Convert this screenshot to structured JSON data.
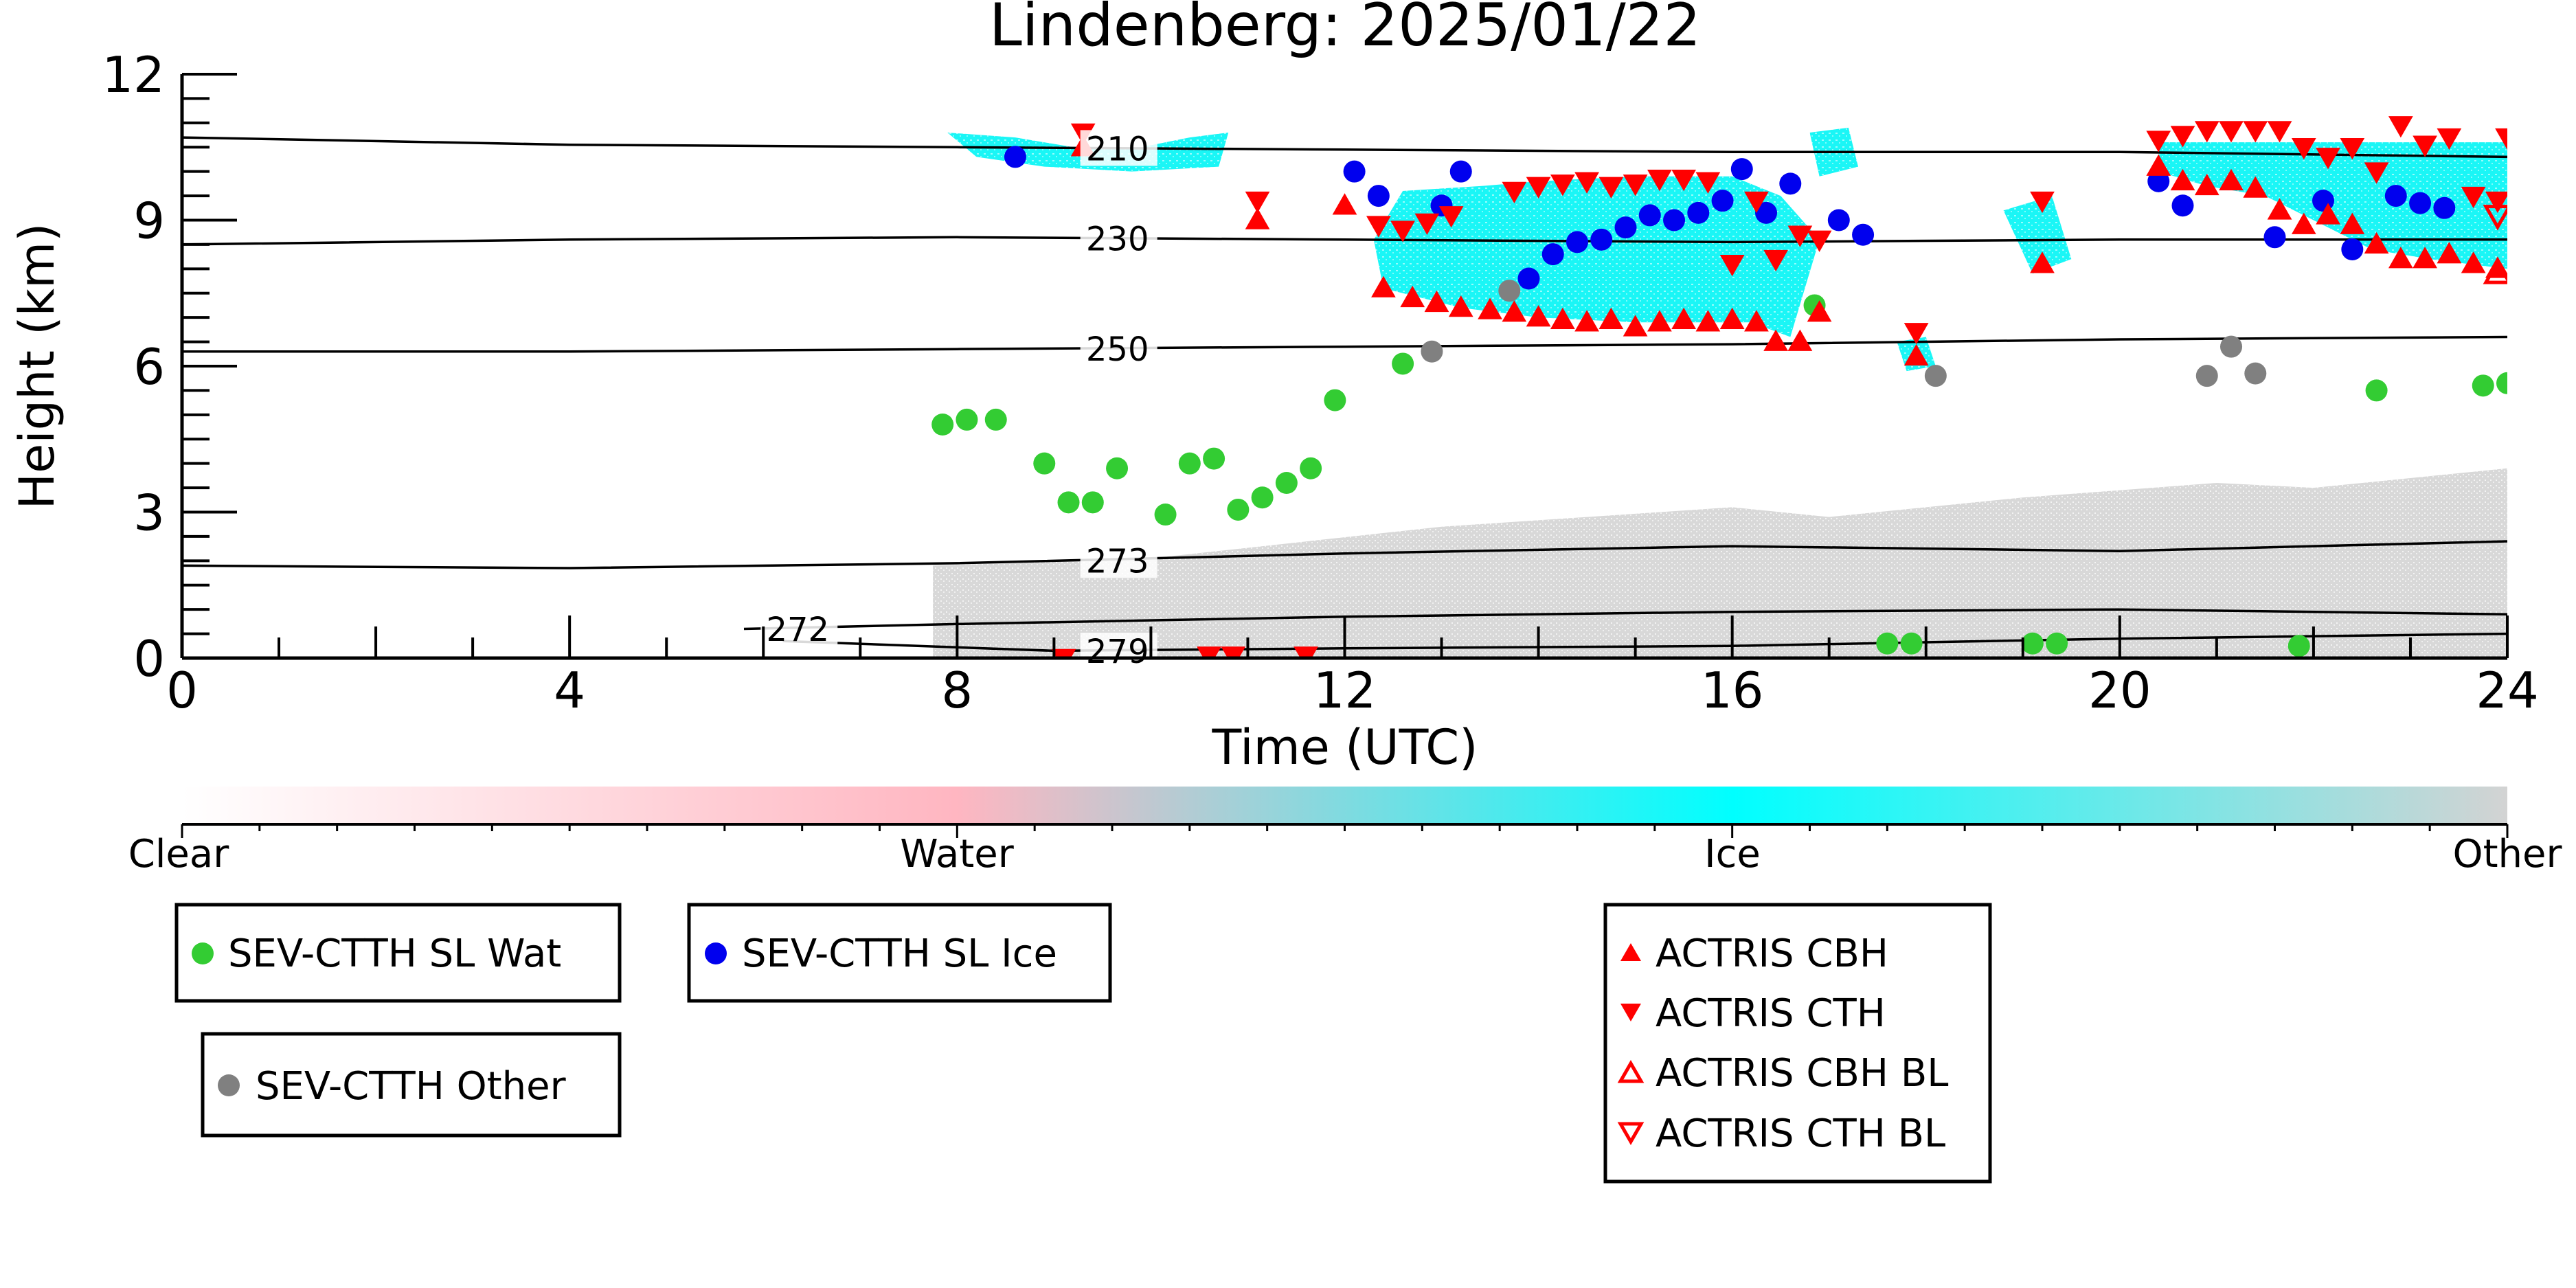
{
  "chart_data": {
    "type": "scatter",
    "title": "Lindenberg: 2025/01/22",
    "xlabel": "Time (UTC)",
    "ylabel": "Height (km)",
    "xlim": [
      0,
      24
    ],
    "ylim": [
      0,
      12
    ],
    "xticks": [
      0,
      4,
      8,
      12,
      16,
      20,
      24
    ],
    "yticks": [
      0,
      3,
      6,
      9,
      12
    ],
    "grid": false,
    "colorbar": {
      "labels": [
        "Clear",
        "Water",
        "Ice",
        "Other"
      ],
      "colors": [
        "#ffffff",
        "#ffb6c1",
        "#00ffff",
        "#d3d3d3"
      ]
    },
    "temperature_contours": [
      {
        "label": "210",
        "label_x": 9.3,
        "points": [
          [
            0,
            10.7
          ],
          [
            4,
            10.55
          ],
          [
            8,
            10.5
          ],
          [
            12,
            10.45
          ],
          [
            16,
            10.4
          ],
          [
            20,
            10.4
          ],
          [
            24,
            10.3
          ]
        ]
      },
      {
        "label": "230",
        "label_x": 9.3,
        "points": [
          [
            0,
            8.5
          ],
          [
            4,
            8.6
          ],
          [
            8,
            8.65
          ],
          [
            12,
            8.6
          ],
          [
            16,
            8.55
          ],
          [
            20,
            8.6
          ],
          [
            24,
            8.6
          ]
        ]
      },
      {
        "label": "250",
        "label_x": 9.3,
        "points": [
          [
            0,
            6.3
          ],
          [
            4,
            6.3
          ],
          [
            8,
            6.35
          ],
          [
            12,
            6.4
          ],
          [
            16,
            6.45
          ],
          [
            20,
            6.55
          ],
          [
            24,
            6.6
          ]
        ]
      },
      {
        "label": "273",
        "label_x": 9.3,
        "points": [
          [
            0,
            1.9
          ],
          [
            4,
            1.85
          ],
          [
            8,
            1.95
          ],
          [
            12,
            2.15
          ],
          [
            16,
            2.3
          ],
          [
            20,
            2.2
          ],
          [
            24,
            2.4
          ]
        ]
      },
      {
        "label": "272",
        "label_x": 6.0,
        "points": [
          [
            5.8,
            0.6
          ],
          [
            8,
            0.7
          ],
          [
            12,
            0.85
          ],
          [
            16,
            0.95
          ],
          [
            20,
            1.0
          ],
          [
            24,
            0.9
          ]
        ]
      },
      {
        "label": "279",
        "label_x": 9.3,
        "points": [
          [
            6.2,
            0.35
          ],
          [
            9,
            0.15
          ],
          [
            12,
            0.2
          ],
          [
            16,
            0.25
          ],
          [
            20,
            0.4
          ],
          [
            24,
            0.5
          ]
        ]
      }
    ],
    "series": [
      {
        "name": "SEV-CTTH SL Wat",
        "marker": "circle",
        "color": "#33cc33",
        "x": [
          7.85,
          8.1,
          8.4,
          8.9,
          9.15,
          9.4,
          9.65,
          10.15,
          10.4,
          10.65,
          10.9,
          11.15,
          11.4,
          11.65,
          11.9,
          12.6,
          16.85,
          17.6,
          17.85,
          19.1,
          19.35,
          21.85,
          22.65,
          23.75,
          24.0
        ],
        "y": [
          4.8,
          4.9,
          4.9,
          4.0,
          3.2,
          3.2,
          3.9,
          2.95,
          4.0,
          4.1,
          3.05,
          3.3,
          3.6,
          3.9,
          5.3,
          6.05,
          7.25,
          0.3,
          0.3,
          0.3,
          0.3,
          0.25,
          5.5,
          5.6,
          5.65
        ]
      },
      {
        "name": "SEV-CTTH SL Ice",
        "marker": "circle",
        "color": "#0000ee",
        "x": [
          8.6,
          12.1,
          12.35,
          13.0,
          13.2,
          13.9,
          14.15,
          14.4,
          14.65,
          14.9,
          15.15,
          15.4,
          15.65,
          15.9,
          16.1,
          16.35,
          16.6,
          17.1,
          17.35,
          20.4,
          20.65,
          21.6,
          22.1,
          22.4,
          22.85,
          23.1,
          23.35
        ],
        "y": [
          10.3,
          10.0,
          9.5,
          9.3,
          10.0,
          7.8,
          8.3,
          8.55,
          8.6,
          8.85,
          9.1,
          9.0,
          9.15,
          9.4,
          10.05,
          9.15,
          9.75,
          9.0,
          8.7,
          9.8,
          9.3,
          8.65,
          9.4,
          8.4,
          9.5,
          9.35,
          9.25
        ]
      },
      {
        "name": "SEV-CTTH Other",
        "marker": "circle",
        "color": "#808080",
        "x": [
          12.9,
          13.7,
          18.1,
          20.9,
          21.15,
          21.4
        ],
        "y": [
          6.3,
          7.55,
          5.8,
          5.8,
          6.4,
          5.85
        ]
      },
      {
        "name": "ACTRIS CBH",
        "marker": "triangle-up",
        "color": "#ff0000",
        "x": [
          9.3,
          11.1,
          12.0,
          12.4,
          12.7,
          12.95,
          13.2,
          13.5,
          13.75,
          14.0,
          14.25,
          14.5,
          14.75,
          15.0,
          15.25,
          15.5,
          15.75,
          16.0,
          16.25,
          16.45,
          16.7,
          16.9,
          17.9,
          19.2,
          20.4,
          20.65,
          20.9,
          21.15,
          21.4,
          21.65,
          21.9,
          22.15,
          22.4,
          22.65,
          22.9,
          23.15,
          23.4,
          23.65,
          23.9
        ],
        "y": [
          10.5,
          9.0,
          9.3,
          7.6,
          7.4,
          7.3,
          7.2,
          7.15,
          7.1,
          7.0,
          6.95,
          6.9,
          6.95,
          6.8,
          6.9,
          6.95,
          6.9,
          6.95,
          6.9,
          6.5,
          6.5,
          7.1,
          6.2,
          8.1,
          10.1,
          9.8,
          9.7,
          9.8,
          9.65,
          9.2,
          8.9,
          9.1,
          8.9,
          8.5,
          8.2,
          8.2,
          8.3,
          8.1,
          8.0
        ]
      },
      {
        "name": "ACTRIS CTH",
        "marker": "triangle-down",
        "color": "#ff0000",
        "x": [
          9.3,
          11.1,
          12.35,
          12.6,
          12.85,
          13.1,
          13.75,
          14.0,
          14.25,
          14.5,
          14.75,
          15.0,
          15.25,
          15.5,
          15.75,
          16.0,
          16.25,
          16.45,
          16.7,
          16.9,
          17.9,
          19.2,
          20.4,
          20.65,
          20.9,
          21.15,
          21.4,
          21.65,
          21.9,
          22.15,
          22.4,
          22.65,
          22.9,
          23.15,
          23.4,
          23.65,
          23.9,
          24.0,
          9.1,
          10.6,
          10.85,
          11.6
        ],
        "y": [
          10.8,
          9.4,
          8.9,
          8.8,
          8.95,
          9.1,
          9.6,
          9.7,
          9.75,
          9.8,
          9.7,
          9.75,
          9.85,
          9.85,
          9.8,
          8.1,
          9.4,
          8.2,
          8.7,
          8.6,
          6.7,
          9.4,
          10.65,
          10.75,
          10.85,
          10.85,
          10.85,
          10.85,
          10.5,
          10.3,
          10.5,
          10.0,
          10.95,
          10.55,
          10.7,
          9.5,
          9.4,
          10.7,
          0.0,
          0.05,
          0.05,
          0.05
        ]
      },
      {
        "name": "ACTRIS CBH BL",
        "marker": "triangle-up-open",
        "color": "#ff0000",
        "x": [
          23.9
        ],
        "y": [
          7.9
        ]
      },
      {
        "name": "ACTRIS CTH BL",
        "marker": "triangle-down-open",
        "color": "#ff0000",
        "x": [
          23.9
        ],
        "y": [
          9.1
        ]
      }
    ]
  },
  "legend": {
    "wat": "SEV-CTTH SL Wat",
    "ice": "SEV-CTTH SL Ice",
    "other": "SEV-CTTH Other",
    "cbh": "ACTRIS CBH",
    "cth": "ACTRIS CTH",
    "cbh_bl": "ACTRIS CBH BL",
    "cth_bl": "ACTRIS CTH BL"
  }
}
